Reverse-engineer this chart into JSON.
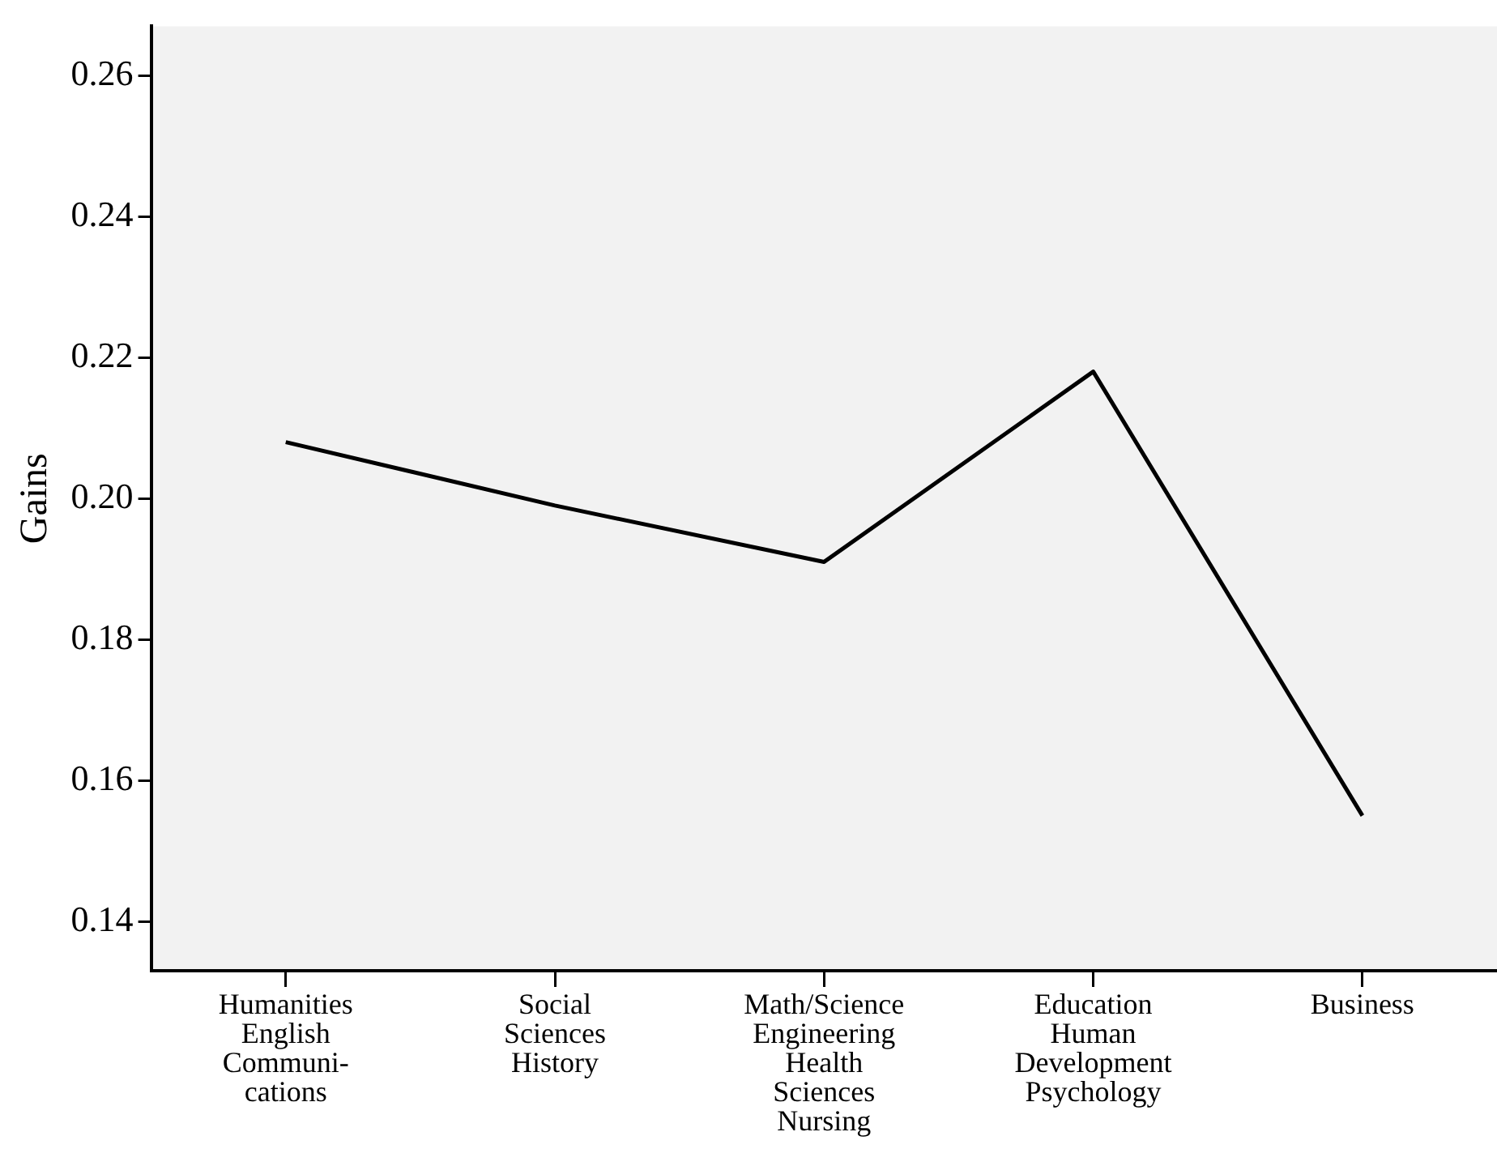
{
  "chart_data": {
    "type": "line",
    "ylabel": "Gains",
    "categories": [
      "Humanities\nEnglish\nCommuni-\ncations",
      "Social\nSciences\nHistory",
      "Math/Science\nEngineering\nHealth\nSciences\nNursing",
      "Education\nHuman\nDevelopment\nPsychology",
      "Business"
    ],
    "series": [
      {
        "color": "#000000",
        "values": [
          0.208,
          0.199,
          0.191,
          0.218,
          0.155
        ]
      }
    ],
    "ylim": [
      0.133,
      0.267
    ],
    "yticks": [
      {
        "value": 0.14,
        "label": "0.14"
      },
      {
        "value": 0.16,
        "label": "0.16"
      },
      {
        "value": 0.18,
        "label": "0.18"
      },
      {
        "value": 0.2,
        "label": "0.20"
      },
      {
        "value": 0.22,
        "label": "0.22"
      },
      {
        "value": 0.24,
        "label": "0.24"
      },
      {
        "value": 0.26,
        "label": "0.26"
      }
    ],
    "grid": false,
    "legend": false,
    "marker": "none",
    "line_style": "solid"
  }
}
